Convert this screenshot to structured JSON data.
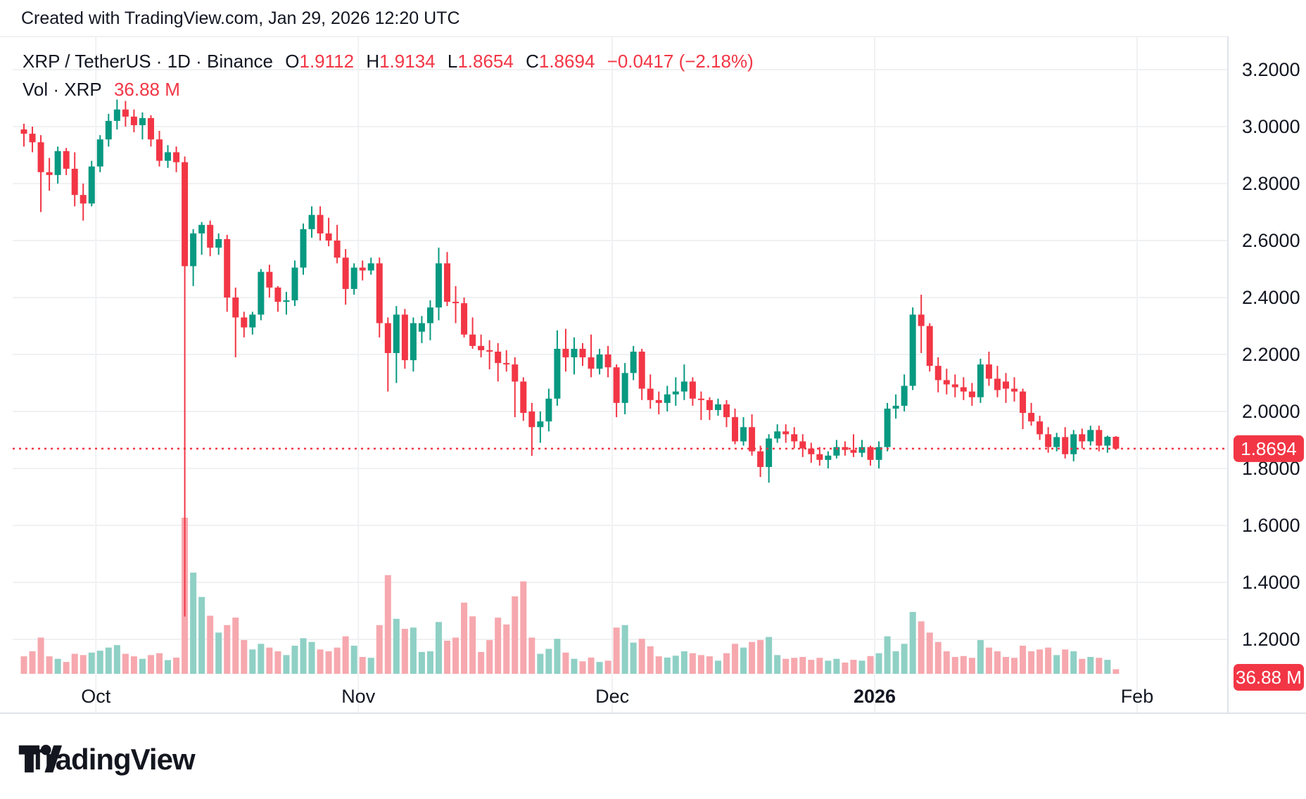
{
  "header": {
    "created_text": "Created with TradingView.com, Jan 29, 2026 12:20 UTC"
  },
  "legend": {
    "symbol": "XRP / TetherUS",
    "sep": " · ",
    "interval": "1D",
    "exchange": "Binance",
    "o_label": "O",
    "o_value": "1.9112",
    "h_label": "H",
    "h_value": "1.9134",
    "l_label": "L",
    "l_value": "1.8654",
    "c_label": "C",
    "c_value": "1.8694",
    "change_text": "−0.0417 (−2.18%)",
    "vol_label": "Vol · XRP",
    "vol_value": "36.88 M"
  },
  "colors": {
    "up": "#089981",
    "down": "#F23645",
    "vol_up": "#8fd0c5",
    "vol_down": "#f6a8ae",
    "grid": "#f0f1f3",
    "axis_border": "#e0e3eb",
    "text": "#131722",
    "last_price_line": "#F23645",
    "label_box_bg": "#F23645",
    "label_box_text": "#ffffff"
  },
  "axis": {
    "price_ticks": [
      "3.2000",
      "3.0000",
      "2.8000",
      "2.6000",
      "2.4000",
      "2.2000",
      "2.0000",
      "1.8000",
      "1.6000",
      "1.4000",
      "1.2000"
    ],
    "price_tick_values": [
      3.2,
      3.0,
      2.8,
      2.6,
      2.4,
      2.2,
      2.0,
      1.8,
      1.6,
      1.4,
      1.2
    ],
    "price_box_label": "1.8694",
    "volume_box_label": "36.88 M",
    "months": [
      {
        "label": "Oct",
        "index": 9,
        "bold": false
      },
      {
        "label": "Nov",
        "index": 40,
        "bold": false
      },
      {
        "label": "Dec",
        "index": 70,
        "bold": false
      },
      {
        "label": "2026",
        "index": 101,
        "bold": true
      },
      {
        "label": "Feb",
        "index": 132,
        "bold": false
      }
    ]
  },
  "logo": {
    "text": "TradingView"
  },
  "chart_data": {
    "type": "candlestick_with_volume",
    "symbol": "XRP/TetherUS",
    "exchange": "Binance",
    "interval": "1D",
    "start_date": "2025-09-22",
    "end_date": "2026-01-29",
    "last_price": 1.8694,
    "last_candle": {
      "open": 1.9112,
      "high": 1.9134,
      "low": 1.8654,
      "close": 1.8694,
      "volume_m": 36.88
    },
    "price_axis_range": [
      1.13,
      3.33
    ],
    "volume_max_m": 1250,
    "grid": true,
    "candles_ohlcv_m": [
      [
        2.99,
        3.01,
        2.93,
        2.975,
        140
      ],
      [
        2.975,
        3.0,
        2.91,
        2.945,
        180
      ],
      [
        2.945,
        2.97,
        2.7,
        2.84,
        290
      ],
      [
        2.84,
        2.89,
        2.775,
        2.83,
        140
      ],
      [
        2.83,
        2.93,
        2.8,
        2.914,
        120
      ],
      [
        2.914,
        2.925,
        2.83,
        2.852,
        95
      ],
      [
        2.852,
        2.91,
        2.72,
        2.76,
        160
      ],
      [
        2.76,
        2.8,
        2.67,
        2.73,
        150
      ],
      [
        2.73,
        2.88,
        2.72,
        2.86,
        170
      ],
      [
        2.86,
        2.97,
        2.84,
        2.955,
        185
      ],
      [
        2.955,
        3.045,
        2.93,
        3.02,
        210
      ],
      [
        3.02,
        3.095,
        2.99,
        3.06,
        230
      ],
      [
        3.06,
        3.09,
        3.0,
        3.035,
        160
      ],
      [
        3.035,
        3.06,
        2.98,
        3.005,
        140
      ],
      [
        3.005,
        3.05,
        2.955,
        3.03,
        120
      ],
      [
        3.03,
        3.04,
        2.93,
        2.955,
        150
      ],
      [
        2.955,
        2.985,
        2.86,
        2.88,
        165
      ],
      [
        2.88,
        2.935,
        2.855,
        2.91,
        110
      ],
      [
        2.91,
        2.93,
        2.84,
        2.875,
        130
      ],
      [
        2.875,
        2.895,
        1.28,
        2.51,
        1250
      ],
      [
        2.51,
        2.64,
        2.44,
        2.625,
        810
      ],
      [
        2.625,
        2.665,
        2.55,
        2.655,
        615
      ],
      [
        2.655,
        2.67,
        2.545,
        2.575,
        465
      ],
      [
        2.575,
        2.625,
        2.55,
        2.605,
        330
      ],
      [
        2.605,
        2.62,
        2.35,
        2.4,
        390
      ],
      [
        2.4,
        2.435,
        2.19,
        2.33,
        450
      ],
      [
        2.33,
        2.35,
        2.26,
        2.295,
        270
      ],
      [
        2.295,
        2.35,
        2.27,
        2.34,
        195
      ],
      [
        2.34,
        2.5,
        2.32,
        2.49,
        240
      ],
      [
        2.49,
        2.515,
        2.4,
        2.435,
        210
      ],
      [
        2.435,
        2.44,
        2.35,
        2.385,
        180
      ],
      [
        2.385,
        2.42,
        2.34,
        2.39,
        150
      ],
      [
        2.39,
        2.53,
        2.37,
        2.505,
        225
      ],
      [
        2.505,
        2.66,
        2.48,
        2.64,
        285
      ],
      [
        2.64,
        2.72,
        2.61,
        2.69,
        255
      ],
      [
        2.69,
        2.72,
        2.6,
        2.625,
        195
      ],
      [
        2.625,
        2.68,
        2.58,
        2.6,
        180
      ],
      [
        2.6,
        2.655,
        2.52,
        2.54,
        210
      ],
      [
        2.54,
        2.57,
        2.375,
        2.43,
        300
      ],
      [
        2.43,
        2.52,
        2.41,
        2.505,
        225
      ],
      [
        2.505,
        2.53,
        2.46,
        2.495,
        135
      ],
      [
        2.495,
        2.54,
        2.48,
        2.52,
        128
      ],
      [
        2.52,
        2.54,
        2.26,
        2.31,
        390
      ],
      [
        2.31,
        2.33,
        2.07,
        2.205,
        790
      ],
      [
        2.205,
        2.37,
        2.1,
        2.34,
        440
      ],
      [
        2.34,
        2.36,
        2.15,
        2.18,
        360
      ],
      [
        2.18,
        2.33,
        2.14,
        2.31,
        370
      ],
      [
        2.28,
        2.335,
        2.24,
        2.31,
        175
      ],
      [
        2.31,
        2.39,
        2.25,
        2.365,
        180
      ],
      [
        2.365,
        2.575,
        2.32,
        2.52,
        415
      ],
      [
        2.52,
        2.56,
        2.37,
        2.385,
        265
      ],
      [
        2.385,
        2.44,
        2.31,
        2.38,
        290
      ],
      [
        2.38,
        2.4,
        2.26,
        2.27,
        570
      ],
      [
        2.27,
        2.33,
        2.22,
        2.23,
        460
      ],
      [
        2.23,
        2.27,
        2.19,
        2.215,
        175
      ],
      [
        2.215,
        2.25,
        2.148,
        2.21,
        270
      ],
      [
        2.21,
        2.24,
        2.105,
        2.17,
        450
      ],
      [
        2.17,
        2.215,
        2.14,
        2.165,
        395
      ],
      [
        2.165,
        2.19,
        1.98,
        2.105,
        620
      ],
      [
        2.105,
        2.12,
        1.967,
        1.995,
        740
      ],
      [
        2.0,
        2.03,
        1.844,
        1.945,
        290
      ],
      [
        1.945,
        2.0,
        1.89,
        1.965,
        160
      ],
      [
        1.965,
        2.08,
        1.93,
        2.045,
        200
      ],
      [
        2.045,
        2.285,
        2.02,
        2.22,
        280
      ],
      [
        2.22,
        2.29,
        2.14,
        2.19,
        170
      ],
      [
        2.19,
        2.26,
        2.13,
        2.22,
        120
      ],
      [
        2.22,
        2.24,
        2.16,
        2.19,
        100
      ],
      [
        2.19,
        2.27,
        2.12,
        2.15,
        130
      ],
      [
        2.15,
        2.22,
        2.13,
        2.2,
        95
      ],
      [
        2.2,
        2.23,
        2.12,
        2.155,
        105
      ],
      [
        2.155,
        2.165,
        1.98,
        2.03,
        370
      ],
      [
        2.03,
        2.17,
        1.99,
        2.135,
        390
      ],
      [
        2.135,
        2.23,
        2.11,
        2.21,
        250
      ],
      [
        2.21,
        2.22,
        2.04,
        2.08,
        280
      ],
      [
        2.08,
        2.13,
        2.01,
        2.04,
        220
      ],
      [
        2.04,
        2.07,
        1.99,
        2.03,
        140
      ],
      [
        2.03,
        2.09,
        2.0,
        2.06,
        130
      ],
      [
        2.06,
        2.12,
        2.02,
        2.07,
        145
      ],
      [
        2.07,
        2.165,
        2.04,
        2.105,
        180
      ],
      [
        2.105,
        2.12,
        2.02,
        2.045,
        165
      ],
      [
        2.045,
        2.07,
        1.97,
        2.04,
        150
      ],
      [
        2.04,
        2.05,
        1.97,
        2.005,
        140
      ],
      [
        2.005,
        2.045,
        1.985,
        2.025,
        105
      ],
      [
        2.025,
        2.04,
        1.945,
        1.98,
        165
      ],
      [
        1.98,
        2.01,
        1.885,
        1.895,
        240
      ],
      [
        1.895,
        1.98,
        1.88,
        1.945,
        210
      ],
      [
        1.945,
        1.99,
        1.845,
        1.86,
        255
      ],
      [
        1.86,
        1.88,
        1.77,
        1.805,
        270
      ],
      [
        1.805,
        1.92,
        1.75,
        1.905,
        295
      ],
      [
        1.905,
        1.955,
        1.89,
        1.93,
        150
      ],
      [
        1.93,
        1.955,
        1.89,
        1.92,
        120
      ],
      [
        1.92,
        1.945,
        1.87,
        1.895,
        128
      ],
      [
        1.895,
        1.92,
        1.84,
        1.87,
        135
      ],
      [
        1.87,
        1.89,
        1.82,
        1.85,
        112
      ],
      [
        1.85,
        1.875,
        1.81,
        1.83,
        128
      ],
      [
        1.83,
        1.86,
        1.8,
        1.845,
        105
      ],
      [
        1.845,
        1.9,
        1.835,
        1.875,
        120
      ],
      [
        1.875,
        1.895,
        1.845,
        1.865,
        90
      ],
      [
        1.865,
        1.92,
        1.84,
        1.855,
        112
      ],
      [
        1.855,
        1.9,
        1.84,
        1.875,
        105
      ],
      [
        1.875,
        1.88,
        1.81,
        1.83,
        142
      ],
      [
        1.83,
        1.895,
        1.8,
        1.875,
        165
      ],
      [
        1.875,
        2.03,
        1.86,
        2.01,
        300
      ],
      [
        2.01,
        2.06,
        1.975,
        2.02,
        180
      ],
      [
        2.02,
        2.13,
        2.0,
        2.09,
        240
      ],
      [
        2.09,
        2.365,
        2.075,
        2.34,
        495
      ],
      [
        2.34,
        2.41,
        2.205,
        2.3,
        420
      ],
      [
        2.3,
        2.31,
        2.14,
        2.16,
        330
      ],
      [
        2.16,
        2.19,
        2.067,
        2.11,
        255
      ],
      [
        2.11,
        2.15,
        2.06,
        2.095,
        180
      ],
      [
        2.095,
        2.13,
        2.05,
        2.085,
        135
      ],
      [
        2.085,
        2.12,
        2.04,
        2.07,
        142
      ],
      [
        2.07,
        2.1,
        2.02,
        2.05,
        128
      ],
      [
        2.05,
        2.185,
        2.03,
        2.165,
        270
      ],
      [
        2.165,
        2.21,
        2.09,
        2.115,
        210
      ],
      [
        2.115,
        2.16,
        2.05,
        2.075,
        180
      ],
      [
        2.105,
        2.135,
        2.03,
        2.08,
        135
      ],
      [
        2.08,
        2.12,
        2.035,
        2.07,
        128
      ],
      [
        2.07,
        2.08,
        1.938,
        1.995,
        225
      ],
      [
        1.995,
        2.03,
        1.95,
        1.965,
        180
      ],
      [
        1.965,
        1.985,
        1.9,
        1.92,
        195
      ],
      [
        1.92,
        1.945,
        1.855,
        1.875,
        210
      ],
      [
        1.875,
        1.925,
        1.86,
        1.91,
        150
      ],
      [
        1.91,
        1.945,
        1.835,
        1.85,
        195
      ],
      [
        1.85,
        1.935,
        1.825,
        1.92,
        180
      ],
      [
        1.92,
        1.94,
        1.87,
        1.895,
        120
      ],
      [
        1.895,
        1.95,
        1.88,
        1.935,
        135
      ],
      [
        1.935,
        1.95,
        1.86,
        1.88,
        128
      ],
      [
        1.88,
        1.915,
        1.855,
        1.9112,
        112
      ],
      [
        1.9112,
        1.9134,
        1.8654,
        1.8694,
        36.88
      ]
    ]
  }
}
